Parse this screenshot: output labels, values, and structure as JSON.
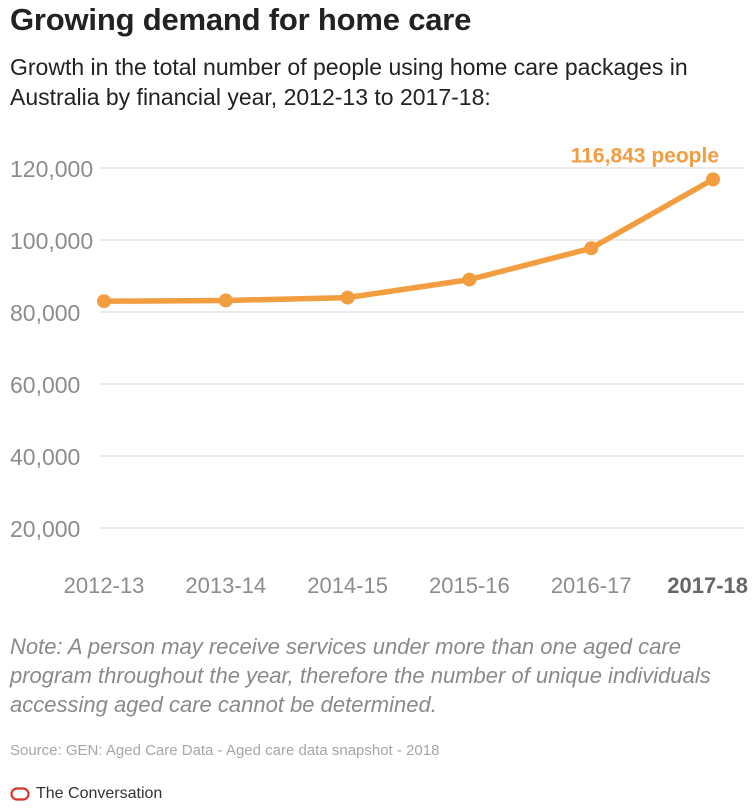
{
  "header": {
    "title": "Growing demand for home care",
    "subtitle": "Growth in the total number of people using home care packages in Australia by financial year, 2012-13 to 2017-18:"
  },
  "chart_data": {
    "type": "line",
    "categories": [
      "2012-13",
      "2013-14",
      "2014-15",
      "2015-16",
      "2016-17",
      "2017-18"
    ],
    "series": [
      {
        "values": [
          83000,
          83200,
          84000,
          89000,
          97700,
          116843
        ]
      }
    ],
    "y_ticks": [
      20000,
      40000,
      60000,
      80000,
      100000,
      120000
    ],
    "y_tick_labels": [
      "20,000",
      "40,000",
      "60,000",
      "80,000",
      "100,000",
      "120,000"
    ],
    "ylim": [
      20000,
      120000
    ],
    "grid": true,
    "highlight_category": "2017-18",
    "annotation": {
      "category": "2017-18",
      "label": "116,843 people"
    },
    "colors": {
      "line": "#F29D3F",
      "annotation": "#F29D3F",
      "grid": "#e3e3e3",
      "axis_text": "#8c8c8c",
      "highlight_text": "#666666"
    }
  },
  "footer": {
    "note": "Note: A person may receive services under more than one aged care program throughout the year, therefore the number of unique individuals accessing aged care cannot be determined.",
    "source": "Source: GEN: Aged Care Data - Aged care data snapshot - 2018",
    "brand": "The Conversation",
    "brand_icon": "conversation-logo-icon",
    "brand_color": "#d8352a"
  }
}
